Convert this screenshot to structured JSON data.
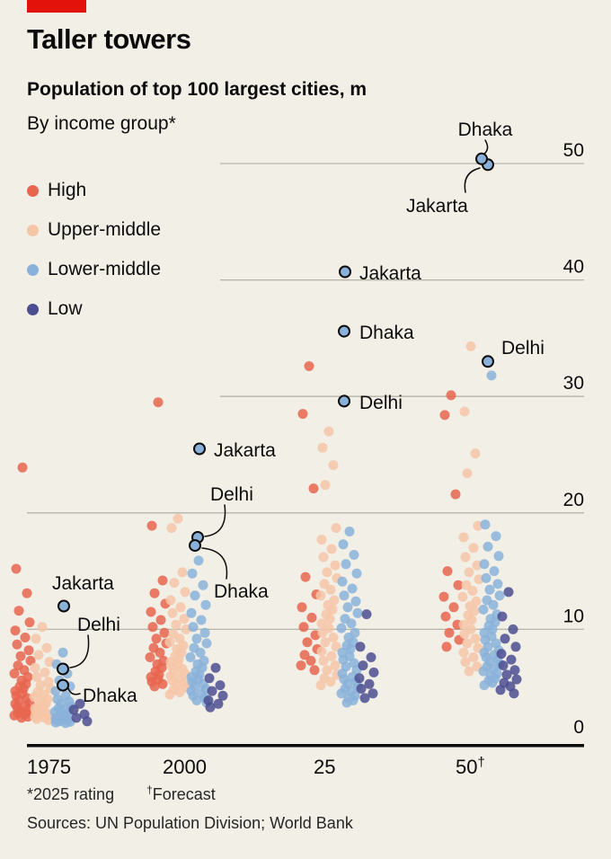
{
  "brand": {
    "bar_color": "#e3120b"
  },
  "header": {
    "title": "Taller towers",
    "subtitle": "Population of top 100 largest cities, m",
    "byline": "By income group*"
  },
  "legend": {
    "items": [
      {
        "key": "high",
        "label": "High",
        "color": "#e8654f"
      },
      {
        "key": "upper_middle",
        "label": "Upper-middle",
        "color": "#f6c5a7"
      },
      {
        "key": "lower_middle",
        "label": "Lower-middle",
        "color": "#8ab1d9"
      },
      {
        "key": "low",
        "label": "Low",
        "color": "#4c4e91"
      }
    ]
  },
  "chart_data": {
    "type": "scatter",
    "variant": "beeswarm-strip",
    "title": "Taller towers",
    "subtitle": "Population of top 100 largest cities, m",
    "group_by": "By income group*",
    "ylabel": "Population, m",
    "ylim": [
      0,
      52
    ],
    "yticks": [
      0,
      10,
      20,
      30,
      40,
      50
    ],
    "grid": "horizontal",
    "x_groups": [
      "1975",
      "2000",
      "25",
      "50†"
    ],
    "income_group_keys": [
      "high",
      "upper_middle",
      "lower_middle",
      "low"
    ],
    "income_groups": [
      "High",
      "Upper-middle",
      "Lower-middle",
      "Low"
    ],
    "series": [
      {
        "year": "1975",
        "points": {
          "high": [
            23.9,
            15.2,
            13.1,
            11.6,
            10.6,
            9.9,
            9.3,
            8.7,
            8.2,
            7.7,
            7.3,
            6.9,
            6.5,
            6.2,
            5.9,
            5.6,
            5.3,
            5.1,
            4.9,
            4.7,
            4.5,
            4.3,
            4.1,
            3.9,
            3.7,
            3.6,
            3.4,
            3.3,
            3.1,
            3.0,
            2.9,
            2.8,
            2.7,
            2.6,
            2.5,
            2.4
          ],
          "upper_middle": [
            10.2,
            9.2,
            8.4,
            7.8,
            7.2,
            6.7,
            6.3,
            5.9,
            5.5,
            5.2,
            4.9,
            4.6,
            4.4,
            4.2,
            4.0,
            3.8,
            3.6,
            3.5,
            3.3,
            3.2,
            3.0,
            2.9,
            2.8,
            2.7,
            2.6,
            2.5,
            2.4,
            2.3,
            2.2
          ],
          "lower_middle": [
            8.0,
            7.0,
            6.2,
            5.6,
            5.1,
            4.7,
            4.3,
            4.0,
            3.8,
            3.6,
            3.4,
            3.2,
            3.1,
            2.9,
            2.8,
            2.7,
            2.6,
            2.5,
            2.4,
            2.35,
            2.3,
            2.25,
            2.2,
            2.1,
            2.05,
            2.0,
            1.95
          ],
          "low": [
            3.6,
            3.1,
            2.7,
            2.4,
            2.1
          ]
        }
      },
      {
        "year": "2000",
        "points": {
          "high": [
            29.5,
            18.9,
            14.2,
            13.1,
            12.2,
            11.5,
            10.8,
            10.2,
            9.7,
            9.2,
            8.8,
            8.4,
            8.0,
            7.6,
            7.3,
            7.0,
            6.7,
            6.4,
            6.1,
            5.9,
            5.7,
            5.5,
            5.3,
            5.1
          ],
          "upper_middle": [
            19.5,
            18.7,
            14.9,
            14.0,
            13.2,
            12.5,
            11.9,
            11.4,
            10.9,
            10.4,
            10.0,
            9.6,
            9.2,
            8.9,
            8.6,
            8.3,
            8.0,
            7.7,
            7.4,
            7.2,
            7.0,
            6.8,
            6.6,
            6.4,
            6.2,
            6.0,
            5.8,
            5.6,
            5.4,
            5.2,
            5.0,
            4.8,
            4.6,
            4.4
          ],
          "lower_middle": [
            15.9,
            14.8,
            13.8,
            12.9,
            12.1,
            11.4,
            10.8,
            10.2,
            9.7,
            9.2,
            8.8,
            8.4,
            8.0,
            7.6,
            7.3,
            7.0,
            6.7,
            6.4,
            6.1,
            5.9,
            5.7,
            5.5,
            5.3,
            5.1,
            4.9,
            4.7,
            4.5,
            4.3,
            4.1,
            3.9,
            3.7
          ],
          "low": [
            6.7,
            5.8,
            5.2,
            4.7,
            4.3,
            3.9,
            3.6,
            3.3
          ]
        }
      },
      {
        "year": "25",
        "points": {
          "high": [
            32.6,
            28.5,
            22.1,
            14.5,
            13.0,
            11.9,
            11.0,
            10.2,
            9.5,
            8.9,
            8.3,
            7.8,
            7.3,
            6.9,
            6.5
          ],
          "upper_middle": [
            27.0,
            25.6,
            24.1,
            22.4,
            18.7,
            17.7,
            16.9,
            16.2,
            15.5,
            14.9,
            14.4,
            13.9,
            13.4,
            12.9,
            12.5,
            12.1,
            11.7,
            11.3,
            10.9,
            10.5,
            10.1,
            9.7,
            9.3,
            8.9,
            8.5,
            8.1,
            7.7,
            7.3,
            6.9,
            6.5,
            6.1,
            5.8,
            5.5,
            5.2
          ],
          "lower_middle": [
            18.4,
            17.3,
            16.4,
            15.6,
            14.8,
            14.1,
            13.5,
            12.9,
            12.4,
            11.9,
            11.4,
            10.9,
            10.5,
            10.1,
            9.7,
            9.3,
            8.9,
            8.6,
            8.3,
            8.0,
            7.7,
            7.4,
            7.1,
            6.8,
            6.5,
            6.2,
            5.9,
            5.7,
            5.5,
            5.3,
            5.1,
            4.9,
            4.7,
            4.5,
            4.3,
            4.1,
            3.9,
            3.7
          ],
          "low": [
            11.3,
            8.5,
            7.6,
            6.9,
            6.3,
            5.8,
            5.3,
            4.9,
            4.5,
            4.1
          ]
        }
      },
      {
        "year": "50†",
        "points": {
          "high": [
            30.1,
            28.4,
            21.6,
            15.0,
            13.8,
            12.8,
            11.9,
            11.1,
            10.4,
            9.7,
            9.1,
            8.5
          ],
          "upper_middle": [
            34.3,
            28.7,
            25.1,
            23.4,
            18.9,
            17.9,
            17.0,
            16.2,
            15.5,
            14.9,
            14.3,
            13.8,
            13.3,
            12.8,
            12.4,
            12.0,
            11.6,
            11.2,
            10.8,
            10.4,
            10.0,
            9.6,
            9.2,
            8.8,
            8.4,
            8.0,
            7.6,
            7.2,
            6.8,
            6.4
          ],
          "lower_middle": [
            31.8,
            19.0,
            18.0,
            17.1,
            16.3,
            15.6,
            15.0,
            14.4,
            13.9,
            13.4,
            12.9,
            12.5,
            12.1,
            11.7,
            11.3,
            10.9,
            10.6,
            10.3,
            10.0,
            9.7,
            9.4,
            9.1,
            8.8,
            8.5,
            8.2,
            8.0,
            7.8,
            7.6,
            7.4,
            7.2,
            7.0,
            6.8,
            6.6,
            6.4,
            6.2,
            6.0,
            5.8,
            5.6,
            5.4,
            5.2
          ],
          "low": [
            13.2,
            11.1,
            10.0,
            9.2,
            8.5,
            7.9,
            7.4,
            6.9,
            6.5,
            6.1,
            5.7,
            5.4,
            5.1,
            4.8,
            4.5
          ]
        }
      }
    ],
    "labeled_cities": [
      {
        "id": "jakarta-2050",
        "city": "Jakarta",
        "year": "50†",
        "group": "lower_middle",
        "value": 49.9
      },
      {
        "id": "dhaka-2050",
        "city": "Dhaka",
        "year": "50†",
        "group": "lower_middle",
        "value": 50.4
      },
      {
        "id": "delhi-2050",
        "city": "Delhi",
        "year": "50†",
        "group": "lower_middle",
        "value": 33.0
      },
      {
        "id": "jakarta-2025",
        "city": "Jakarta",
        "year": "25",
        "group": "lower_middle",
        "value": 40.7
      },
      {
        "id": "dhaka-2025",
        "city": "Dhaka",
        "year": "25",
        "group": "lower_middle",
        "value": 35.6
      },
      {
        "id": "delhi-2025",
        "city": "Delhi",
        "year": "25",
        "group": "lower_middle",
        "value": 29.6
      },
      {
        "id": "jakarta-2000",
        "city": "Jakarta",
        "year": "2000",
        "group": "lower_middle",
        "value": 25.5
      },
      {
        "id": "delhi-2000",
        "city": "Delhi",
        "year": "2000",
        "group": "lower_middle",
        "value": 17.9
      },
      {
        "id": "dhaka-2000",
        "city": "Dhaka",
        "year": "2000",
        "group": "lower_middle",
        "value": 17.2
      },
      {
        "id": "jakarta-1975",
        "city": "Jakarta",
        "year": "1975",
        "group": "lower_middle",
        "value": 12.0
      },
      {
        "id": "delhi-1975",
        "city": "Delhi",
        "year": "1975",
        "group": "lower_middle",
        "value": 6.6
      },
      {
        "id": "dhaka-1975",
        "city": "Dhaka",
        "year": "1975",
        "group": "lower_middle",
        "value": 5.2
      }
    ]
  },
  "footnotes": {
    "rating": "*2025 rating",
    "forecast_dagger": "†",
    "forecast_text": "Forecast",
    "sources": "Sources: UN Population Division; World Bank"
  }
}
